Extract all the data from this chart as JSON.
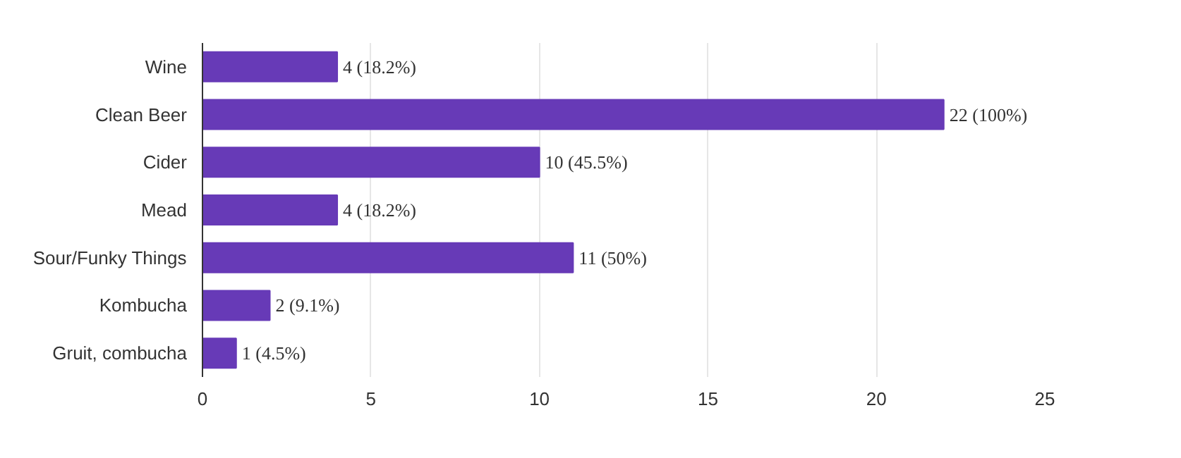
{
  "chart_data": {
    "type": "bar",
    "orientation": "horizontal",
    "categories": [
      "Wine",
      "Clean Beer",
      "Cider",
      "Mead",
      "Sour/Funky Things",
      "Kombucha",
      "Gruit, combucha"
    ],
    "values": [
      4,
      22,
      10,
      4,
      11,
      2,
      1
    ],
    "value_labels": [
      "4 (18.2%)",
      "22 (100%)",
      "10 (45.5%)",
      "4 (18.2%)",
      "11 (50%)",
      "2 (9.1%)",
      "1 (4.5%)"
    ],
    "color": "#673ab7",
    "xlim": [
      0,
      25
    ],
    "xticks": [
      0,
      5,
      10,
      15,
      20,
      25
    ],
    "grid": "x"
  }
}
